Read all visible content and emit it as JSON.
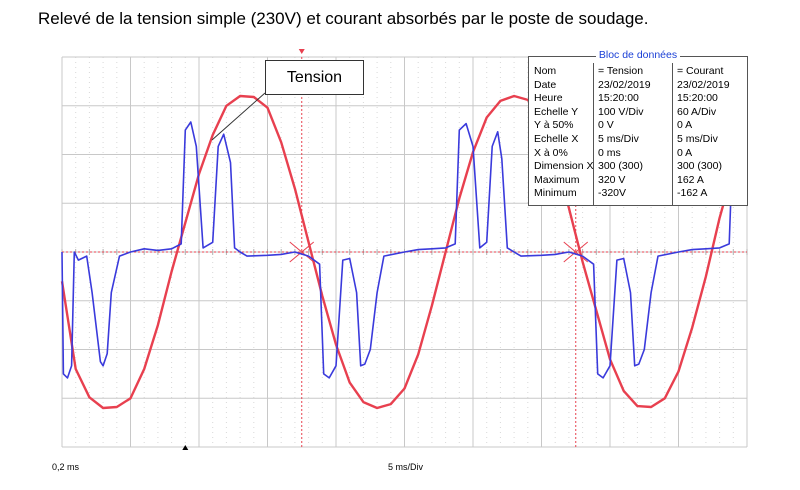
{
  "title": "Relevé de la tension simple (230V) et courant absorbés par le poste de soudage.",
  "callout": "Tension",
  "footer": {
    "left": "0,2 ms",
    "center": "5 ms/Div"
  },
  "data_block": {
    "title": "Bloc de données",
    "rows": [
      {
        "label": "Nom",
        "tension": "= Tension",
        "courant": "= Courant"
      },
      {
        "label": "Date",
        "tension": "23/02/2019",
        "courant": "23/02/2019"
      },
      {
        "label": "Heure",
        "tension": "15:20:00",
        "courant": "15:20:00"
      },
      {
        "label": "Echelle Y",
        "tension": "100 V/Div",
        "courant": "60 A/Div"
      },
      {
        "label": "Y à 50%",
        "tension": "0 V",
        "courant": "0 A"
      },
      {
        "label": "Echelle X",
        "tension": "5 ms/Div",
        "courant": "5 ms/Div"
      },
      {
        "label": "X à 0%",
        "tension": "0 ms",
        "courant": "0 A"
      },
      {
        "label": "Dimension X",
        "tension": "300 (300)",
        "courant": "300 (300)"
      },
      {
        "label": "Maximum",
        "tension": "320 V",
        "courant": "162 A"
      },
      {
        "label": "Minimum",
        "tension": "-320V",
        "courant": "-162 A"
      }
    ]
  },
  "colors": {
    "tension": "#e8404f",
    "courant": "#3a3adc",
    "cursor": "#e8404f",
    "grid": "#c8c8c8"
  },
  "chart_data": {
    "type": "line",
    "x_unit": "ms",
    "x_range": [
      0,
      50
    ],
    "x_div": 5,
    "y_divisions": 8,
    "grid": true,
    "series": [
      {
        "name": "Tension",
        "unit": "V",
        "y_div": 100,
        "x": [
          0,
          1,
          2,
          3,
          4,
          5,
          6,
          7,
          8,
          9,
          10,
          11,
          12,
          13,
          14,
          15,
          16,
          17,
          18,
          19,
          20,
          21,
          22,
          23,
          24,
          25,
          26,
          27,
          28,
          29,
          30,
          31,
          32,
          33,
          34,
          35,
          36,
          37,
          38,
          39,
          40,
          41,
          42,
          43,
          44,
          45,
          46,
          47,
          48,
          49,
          49.5
        ],
        "y": [
          -60,
          -240,
          -298,
          -320,
          -318,
          -300,
          -240,
          -150,
          -40,
          60,
          160,
          240,
          300,
          320,
          318,
          296,
          225,
          130,
          20,
          -90,
          -190,
          -268,
          -308,
          -320,
          -312,
          -280,
          -210,
          -110,
          0,
          110,
          205,
          276,
          310,
          320,
          312,
          275,
          200,
          90,
          -20,
          -120,
          -220,
          -285,
          -316,
          -318,
          -300,
          -245,
          -155,
          -50,
          70,
          170,
          185
        ]
      },
      {
        "name": "Courant",
        "unit": "A",
        "y_div": 60,
        "x": [
          0,
          0.1,
          0.4,
          0.7,
          0.9,
          1.2,
          1.8,
          2.2,
          2.8,
          3.0,
          3.3,
          3.6,
          4.2,
          5,
          6,
          7,
          8,
          8.7,
          9,
          9.4,
          9.8,
          10.3,
          11,
          11.4,
          11.8,
          12.3,
          12.6,
          13,
          13.5,
          15,
          16,
          17,
          18,
          18.8,
          19.1,
          19.5,
          20,
          20.5,
          21,
          21.5,
          21.8,
          22.1,
          22.5,
          23,
          23.5,
          25,
          26,
          27,
          28,
          28.7,
          29,
          29.5,
          30,
          30.5,
          31,
          31.4,
          31.8,
          32.1,
          32.5,
          33,
          33.5,
          35,
          36,
          37,
          38,
          38.8,
          39.1,
          39.5,
          40,
          40.5,
          41,
          41.5,
          41.8,
          42.1,
          42.5,
          43,
          43.5,
          45,
          46,
          47,
          48,
          48.7,
          49,
          49.5
        ],
        "y": [
          0,
          -150,
          -155,
          -140,
          0,
          -10,
          -5,
          -50,
          -135,
          -140,
          -125,
          -50,
          -5,
          0,
          4,
          2,
          4,
          10,
          150,
          160,
          130,
          5,
          12,
          130,
          145,
          110,
          5,
          0,
          -5,
          -4,
          -3,
          0,
          -5,
          -15,
          -150,
          -155,
          -140,
          -10,
          -8,
          -50,
          -140,
          -138,
          -120,
          -50,
          -5,
          0,
          3,
          4,
          5,
          10,
          150,
          158,
          130,
          5,
          12,
          130,
          148,
          115,
          5,
          0,
          -5,
          -4,
          -3,
          0,
          -5,
          -15,
          -150,
          -155,
          -140,
          -10,
          -8,
          -50,
          -140,
          -138,
          -120,
          -50,
          -5,
          0,
          3,
          4,
          5,
          10,
          150,
          158
        ]
      }
    ],
    "annotations": [
      "Tension"
    ]
  }
}
